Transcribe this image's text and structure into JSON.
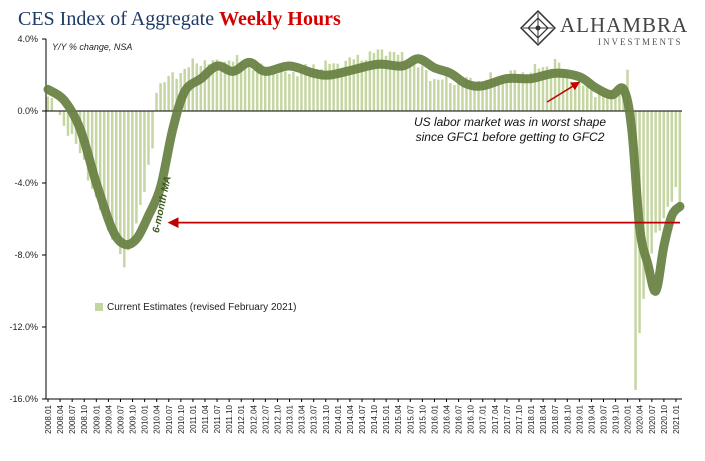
{
  "chart_data": {
    "type": "bar",
    "title_part1": "CES Index of Aggregate ",
    "title_part2": "Weekly Hours",
    "subtitle": "Y/Y % change, NSA",
    "ylim": [
      -16,
      4
    ],
    "yticks": [
      4,
      0,
      -4,
      -8,
      -12,
      -16
    ],
    "ytick_labels": [
      "4.0%",
      "0.0%",
      "-4.0%",
      "-8.0%",
      "-12.0%",
      "-16.0%"
    ],
    "xtick_labels": [
      "2008.01",
      "2008.04",
      "2008.07",
      "2008.10",
      "2009.01",
      "2009.04",
      "2009.07",
      "2009.10",
      "2010.01",
      "2010.04",
      "2010.07",
      "2010.10",
      "2011.01",
      "2011.04",
      "2011.07",
      "2011.10",
      "2012.01",
      "2012.04",
      "2012.07",
      "2012.10",
      "2013.01",
      "2013.04",
      "2013.07",
      "2013.10",
      "2014.01",
      "2014.04",
      "2014.07",
      "2014.10",
      "2015.01",
      "2015.04",
      "2015.07",
      "2015.10",
      "2016.01",
      "2016.04",
      "2016.07",
      "2016.10",
      "2017.01",
      "2017.04",
      "2017.07",
      "2017.10",
      "2018.01",
      "2018.04",
      "2018.07",
      "2018.10",
      "2019.01",
      "2019.04",
      "2019.07",
      "2019.10",
      "2020.01",
      "2020.04",
      "2020.07",
      "2020.10",
      "2021.01"
    ],
    "series": [
      {
        "name": "Current Estimates (revised February 2021)",
        "type": "bar",
        "color": "#c5d6a3",
        "anchors": [
          [
            0,
            0.8
          ],
          [
            3,
            -0.3
          ],
          [
            6,
            -1.5
          ],
          [
            9,
            -2.8
          ],
          [
            12,
            -5.0
          ],
          [
            15,
            -6.5
          ],
          [
            17,
            -7.2
          ],
          [
            19,
            -8.8
          ],
          [
            21,
            -7.0
          ],
          [
            24,
            -4.5
          ],
          [
            26,
            -2.0
          ],
          [
            27,
            1.3
          ],
          [
            30,
            1.8
          ],
          [
            33,
            2.2
          ],
          [
            36,
            2.6
          ],
          [
            39,
            2.8
          ],
          [
            42,
            2.6
          ],
          [
            45,
            2.9
          ],
          [
            48,
            2.7
          ],
          [
            54,
            2.3
          ],
          [
            60,
            2.1
          ],
          [
            66,
            2.5
          ],
          [
            72,
            2.6
          ],
          [
            78,
            3.0
          ],
          [
            84,
            3.4
          ],
          [
            90,
            2.8
          ],
          [
            96,
            1.8
          ],
          [
            102,
            1.6
          ],
          [
            108,
            1.7
          ],
          [
            114,
            2.0
          ],
          [
            120,
            2.2
          ],
          [
            126,
            2.7
          ],
          [
            132,
            1.5
          ],
          [
            138,
            0.9
          ],
          [
            143,
            1.2
          ],
          [
            144,
            2.3
          ],
          [
            145,
            -2.0
          ],
          [
            146,
            -15.5
          ],
          [
            147,
            -12.0
          ],
          [
            149,
            -9.0
          ],
          [
            151,
            -7.0
          ],
          [
            153,
            -5.8
          ],
          [
            155,
            -5.0
          ],
          [
            156,
            -4.5
          ],
          [
            157,
            -5.5
          ]
        ]
      },
      {
        "name": "6-month MA",
        "type": "line",
        "color": "#667f40",
        "anchors": [
          [
            0,
            1.2
          ],
          [
            4,
            0.6
          ],
          [
            8,
            -1.0
          ],
          [
            12,
            -4.0
          ],
          [
            16,
            -6.6
          ],
          [
            19,
            -7.4
          ],
          [
            22,
            -7.1
          ],
          [
            25,
            -5.8
          ],
          [
            28,
            -4.2
          ],
          [
            31,
            -1.0
          ],
          [
            34,
            1.1
          ],
          [
            38,
            1.8
          ],
          [
            42,
            2.5
          ],
          [
            46,
            2.2
          ],
          [
            50,
            2.7
          ],
          [
            54,
            2.2
          ],
          [
            60,
            2.5
          ],
          [
            66,
            2.1
          ],
          [
            70,
            2.0
          ],
          [
            76,
            2.3
          ],
          [
            82,
            2.6
          ],
          [
            88,
            2.5
          ],
          [
            92,
            2.9
          ],
          [
            96,
            2.4
          ],
          [
            100,
            2.1
          ],
          [
            104,
            1.5
          ],
          [
            108,
            1.4
          ],
          [
            114,
            1.8
          ],
          [
            120,
            1.8
          ],
          [
            126,
            2.1
          ],
          [
            132,
            1.9
          ],
          [
            136,
            1.3
          ],
          [
            140,
            0.9
          ],
          [
            143,
            1.2
          ],
          [
            145,
            -1.0
          ],
          [
            147,
            -6.5
          ],
          [
            149,
            -8.5
          ],
          [
            151,
            -10.0
          ],
          [
            153,
            -7.5
          ],
          [
            155,
            -5.8
          ],
          [
            157,
            -5.3
          ]
        ]
      }
    ],
    "annotation_lines": [
      "US labor market was in worst shape",
      "since GFC1 before getting to GFC2"
    ],
    "ma_label": "6-month MA",
    "reference_arrow": {
      "level": -6.2,
      "from_index": 157,
      "to_index": 30,
      "color": "#c00000"
    },
    "small_arrow_color": "#c00000",
    "grid": false,
    "legend_position": "lower-left"
  },
  "logo": {
    "name": "ALHAMBRA",
    "sub": "INVESTMENTS",
    "icon": "alhambra-diamond-icon"
  }
}
